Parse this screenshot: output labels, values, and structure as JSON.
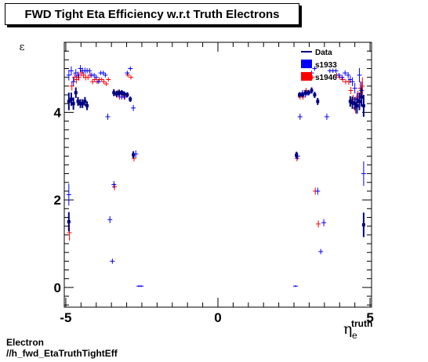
{
  "title": "FWD Tight Eta Efficiency w.r.t Truth Electrons",
  "footer": {
    "line1": "Electron",
    "line2": "//h_fwd_EtaTruthTightEff"
  },
  "chart_data": {
    "type": "scatter",
    "ylabel_glyph": "ε",
    "xlabel": {
      "base": "η",
      "sub": "e",
      "sup": "truth"
    },
    "xlim": [
      -5.05,
      5.05
    ],
    "ylim": [
      -0.45,
      5.6
    ],
    "xticks": [
      -5,
      0,
      5
    ],
    "xtick_labels": [
      "-5",
      "0",
      "5"
    ],
    "yticks": [
      0,
      2,
      4
    ],
    "ytick_labels": [
      "0",
      "2",
      "4"
    ],
    "grid": false,
    "legend_position": "top-right",
    "legend": [
      "Data",
      "s1933",
      "s1946"
    ],
    "colors": {
      "Data": "#000080",
      "s1933": "#0000ff",
      "s1946": "#ff0000"
    },
    "series": [
      {
        "name": "Data",
        "style": "errorbar",
        "x": [
          -4.9,
          -4.9,
          -4.82,
          -4.75,
          -4.67,
          -4.6,
          -4.52,
          -4.45,
          -4.37,
          -4.3,
          -3.42,
          -3.33,
          -3.25,
          -3.16,
          -3.08,
          -2.98,
          -2.88,
          -2.78,
          2.58,
          2.68,
          2.78,
          2.88,
          2.98,
          3.08,
          3.18,
          3.28,
          4.35,
          4.42,
          4.5,
          4.57,
          4.65,
          4.72,
          4.79,
          4.79
        ],
        "y": [
          1.5,
          4.25,
          4.3,
          4.2,
          4.45,
          4.25,
          4.2,
          4.2,
          4.25,
          4.15,
          4.45,
          4.42,
          4.45,
          4.45,
          4.42,
          4.4,
          4.3,
          3.03,
          3.02,
          4.4,
          4.4,
          4.45,
          4.45,
          4.5,
          4.4,
          4.25,
          4.25,
          4.22,
          4.2,
          4.15,
          4.25,
          4.35,
          4.15,
          1.43
        ],
        "yerr": [
          0.22,
          0.2,
          0.15,
          0.14,
          0.12,
          0.1,
          0.1,
          0.1,
          0.1,
          0.1,
          0.08,
          0.07,
          0.07,
          0.06,
          0.06,
          0.06,
          0.06,
          0.08,
          0.08,
          0.06,
          0.06,
          0.06,
          0.06,
          0.07,
          0.07,
          0.08,
          0.12,
          0.14,
          0.15,
          0.18,
          0.2,
          0.22,
          0.25,
          0.28
        ]
      },
      {
        "name": "s1933",
        "style": "cross",
        "x": [
          -4.9,
          -4.9,
          -4.82,
          -4.75,
          -4.67,
          -4.6,
          -4.52,
          -4.45,
          -4.37,
          -4.3,
          -4.22,
          -4.15,
          -4.07,
          -4.0,
          -3.92,
          -3.85,
          -3.77,
          -3.7,
          -3.62,
          -3.55,
          -3.47,
          -3.42,
          -3.33,
          -3.25,
          -3.16,
          -3.08,
          -2.98,
          -2.88,
          -2.78,
          -2.7,
          -2.6,
          -2.52,
          2.55,
          2.62,
          2.7,
          2.78,
          2.88,
          2.98,
          3.08,
          3.18,
          3.28,
          3.38,
          3.48,
          3.58,
          3.68,
          3.78,
          3.88,
          3.98,
          4.08,
          4.18,
          4.28,
          4.35,
          4.42,
          4.5,
          4.57,
          4.65,
          4.72,
          4.79
        ],
        "y": [
          2.12,
          4.85,
          4.95,
          4.7,
          4.9,
          4.85,
          5.0,
          4.95,
          4.95,
          4.95,
          4.95,
          4.85,
          4.85,
          4.8,
          4.7,
          4.9,
          4.9,
          4.85,
          3.9,
          1.55,
          0.6,
          2.35,
          4.4,
          4.4,
          4.35,
          4.35,
          4.9,
          5.0,
          4.1,
          3.05,
          0.03,
          0.03,
          0.03,
          3.0,
          3.9,
          4.45,
          4.4,
          4.45,
          4.9,
          5.0,
          2.2,
          0.82,
          1.48,
          3.9,
          4.95,
          4.95,
          4.95,
          4.85,
          4.8,
          4.9,
          4.85,
          4.75,
          4.7,
          4.55,
          4.3,
          4.85,
          4.5,
          2.6
        ],
        "yerr": [
          0.25,
          0.12,
          0.1,
          0.1,
          0.09,
          0.08,
          0.08,
          0.07,
          0.07,
          0.06,
          0.06,
          0.06,
          0.05,
          0.05,
          0.05,
          0.05,
          0.05,
          0.05,
          0.07,
          0.08,
          0.06,
          0.08,
          0.06,
          0.06,
          0.06,
          0.06,
          0.05,
          0.05,
          0.07,
          0.08,
          0.02,
          0.02,
          0.02,
          0.08,
          0.07,
          0.06,
          0.06,
          0.06,
          0.05,
          0.05,
          0.08,
          0.06,
          0.08,
          0.07,
          0.05,
          0.05,
          0.05,
          0.05,
          0.06,
          0.06,
          0.07,
          0.08,
          0.1,
          0.12,
          0.14,
          0.16,
          0.2,
          0.28
        ]
      },
      {
        "name": "s1946",
        "style": "cross",
        "x": [
          -4.88,
          -4.8,
          -4.72,
          -4.65,
          -4.57,
          -4.5,
          -4.42,
          -4.35,
          -4.27,
          -4.2,
          -4.12,
          -4.05,
          -3.97,
          -3.9,
          -3.82,
          -3.75,
          -3.67,
          -3.6,
          -3.4,
          -3.31,
          -3.23,
          -3.14,
          -3.06,
          -2.96,
          -2.86,
          -2.76,
          2.6,
          2.7,
          2.8,
          2.9,
          3.0,
          3.1,
          3.2,
          3.3,
          3.9,
          4.0,
          4.1,
          4.2,
          4.3,
          4.37,
          4.44,
          4.52,
          4.6,
          4.68,
          4.75
        ],
        "y": [
          1.25,
          4.6,
          4.8,
          4.75,
          4.8,
          4.9,
          4.85,
          4.8,
          4.8,
          4.85,
          4.7,
          4.75,
          4.7,
          4.75,
          4.75,
          4.7,
          4.65,
          4.75,
          2.3,
          4.45,
          4.35,
          4.4,
          4.35,
          4.85,
          4.8,
          2.95,
          2.95,
          4.35,
          4.35,
          4.5,
          4.85,
          4.8,
          2.2,
          1.45,
          4.85,
          4.8,
          4.75,
          4.7,
          4.7,
          4.5,
          4.3,
          4.1,
          4.35,
          4.55,
          4.6
        ],
        "yerr": [
          0.18,
          0.1,
          0.09,
          0.09,
          0.08,
          0.08,
          0.07,
          0.07,
          0.06,
          0.06,
          0.06,
          0.05,
          0.05,
          0.05,
          0.05,
          0.05,
          0.05,
          0.05,
          0.08,
          0.06,
          0.06,
          0.06,
          0.06,
          0.05,
          0.05,
          0.07,
          0.07,
          0.06,
          0.06,
          0.06,
          0.05,
          0.05,
          0.08,
          0.08,
          0.05,
          0.05,
          0.06,
          0.06,
          0.07,
          0.08,
          0.1,
          0.12,
          0.14,
          0.16,
          0.2
        ]
      }
    ]
  }
}
